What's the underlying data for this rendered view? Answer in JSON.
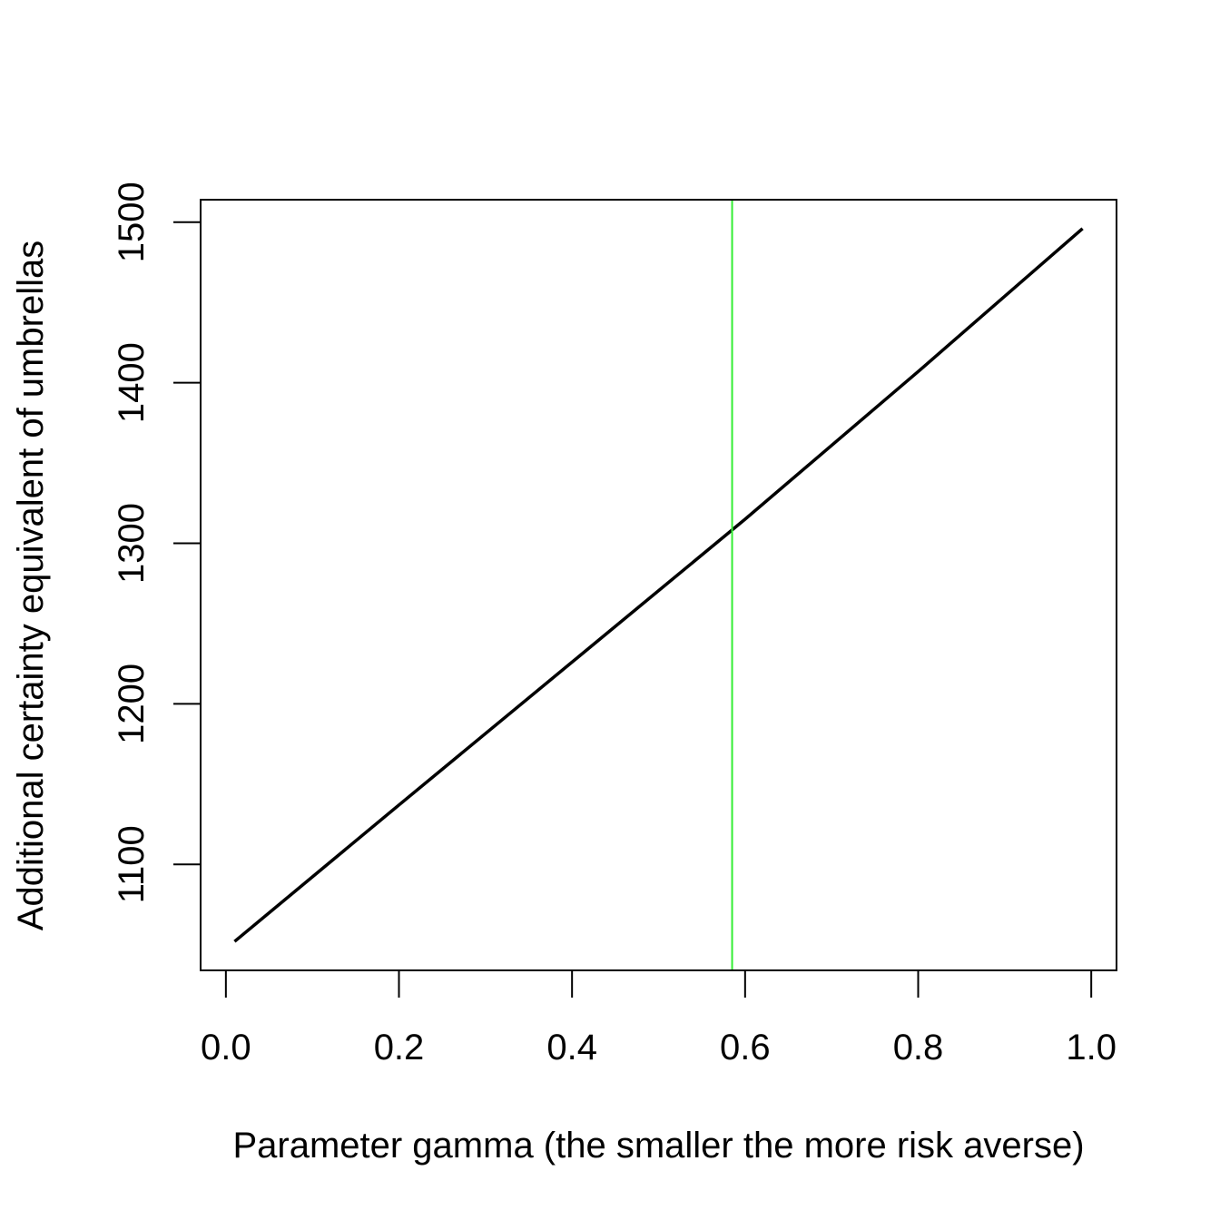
{
  "chart_data": {
    "type": "line",
    "title": "",
    "xlabel": "Parameter gamma (the smaller the more risk averse)",
    "ylabel": "Additional certainty equivalent of umbrellas",
    "xlim": [
      -0.0292,
      1.0292
    ],
    "ylim": [
      1034,
      1514
    ],
    "x_ticks": [
      0.0,
      0.2,
      0.4,
      0.6,
      0.8,
      1.0
    ],
    "x_tick_labels": [
      "0.0",
      "0.2",
      "0.4",
      "0.6",
      "0.8",
      "1.0"
    ],
    "y_ticks": [
      1100,
      1200,
      1300,
      1400,
      1500
    ],
    "y_tick_labels": [
      "1100",
      "1200",
      "1300",
      "1400",
      "1500"
    ],
    "grid": false,
    "series": [
      {
        "color": "#000000",
        "x": [
          0.01,
          0.2,
          0.4,
          0.6,
          0.8,
          0.99
        ],
        "y": [
          1052,
          1137,
          1226,
          1315,
          1407,
          1496
        ]
      }
    ],
    "vline": {
      "x": 0.585,
      "color": "#33ee33"
    }
  }
}
